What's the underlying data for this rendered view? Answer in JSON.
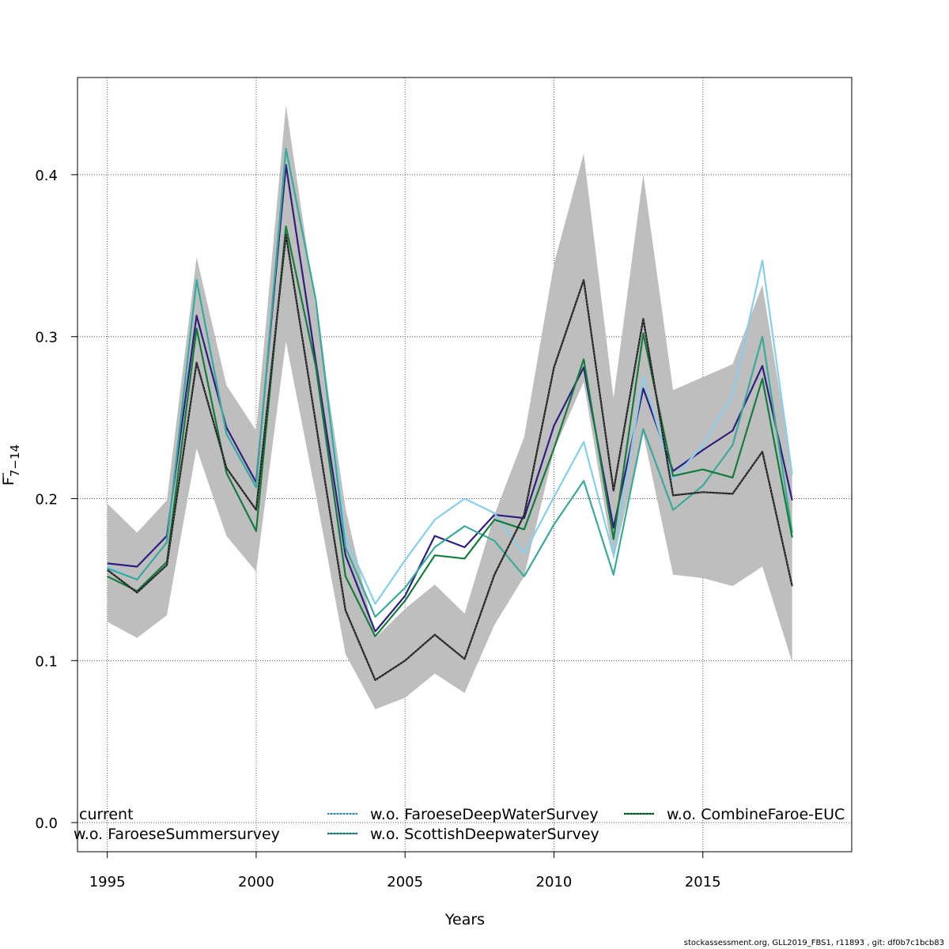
{
  "chart_data": {
    "type": "line",
    "xlabel": "Years",
    "ylabel": {
      "main": "F",
      "subscript": "7−14"
    },
    "xlim": [
      1994,
      2020
    ],
    "ylim": [
      -0.018,
      0.46
    ],
    "x_ticks": [
      1995,
      2000,
      2005,
      2010,
      2015
    ],
    "y_ticks": [
      0.0,
      0.1,
      0.2,
      0.3,
      0.4
    ],
    "y_tick_labels": [
      "0.0",
      "0.1",
      "0.2",
      "0.3",
      "0.4"
    ],
    "grid": true,
    "legend_position": "bottom",
    "x": [
      1995,
      1996,
      1997,
      1998,
      1999,
      2000,
      2001,
      2002,
      2003,
      2004,
      2005,
      2006,
      2007,
      2008,
      2009,
      2010,
      2011,
      2012,
      2013,
      2014,
      2015,
      2016,
      2017,
      2018
    ],
    "confidence_band": {
      "color": "#bebebe",
      "upper": [
        0.197,
        0.179,
        0.199,
        0.349,
        0.27,
        0.242,
        0.443,
        0.318,
        0.194,
        0.114,
        0.132,
        0.147,
        0.129,
        0.19,
        0.238,
        0.345,
        0.413,
        0.262,
        0.4,
        0.267,
        0.275,
        0.283,
        0.332,
        0.218
      ],
      "lower": [
        0.124,
        0.114,
        0.128,
        0.231,
        0.177,
        0.155,
        0.297,
        0.203,
        0.104,
        0.07,
        0.077,
        0.092,
        0.08,
        0.122,
        0.152,
        0.23,
        0.272,
        0.162,
        0.24,
        0.153,
        0.151,
        0.146,
        0.158,
        0.099
      ]
    },
    "series": [
      {
        "name": "current",
        "color": "#1a1a1a",
        "dashed": true,
        "values": [
          0.156,
          0.142,
          0.159,
          0.284,
          0.219,
          0.193,
          0.363,
          0.247,
          0.131,
          0.088,
          0.1,
          0.116,
          0.101,
          0.153,
          0.19,
          0.281,
          0.335,
          0.205,
          0.311,
          0.202,
          0.204,
          0.203,
          0.229,
          0.146
        ]
      },
      {
        "name": "w.o. FaroeseSummersurvey",
        "color": "#2e1e80",
        "dashed": false,
        "values": [
          0.16,
          0.158,
          0.177,
          0.313,
          0.244,
          0.21,
          0.406,
          0.285,
          0.165,
          0.118,
          0.14,
          0.177,
          0.17,
          0.19,
          0.188,
          0.245,
          0.281,
          0.182,
          0.268,
          0.217,
          0.23,
          0.242,
          0.282,
          0.199
        ]
      },
      {
        "name": "w.o. FaroeseDeepWaterSurvey",
        "color": "#87ceeb",
        "dashed": false,
        "values": [
          0.158,
          0.15,
          0.173,
          0.336,
          0.24,
          0.207,
          0.416,
          0.323,
          0.176,
          0.135,
          0.162,
          0.187,
          0.2,
          0.191,
          0.166,
          0.201,
          0.235,
          0.165,
          0.275,
          0.212,
          0.233,
          0.264,
          0.347,
          0.215
        ]
      },
      {
        "name": "w.o. ScottishDeepwaterSurvey",
        "color": "#3aa99a",
        "dashed": false,
        "values": [
          0.157,
          0.15,
          0.173,
          0.335,
          0.24,
          0.207,
          0.416,
          0.323,
          0.17,
          0.127,
          0.145,
          0.17,
          0.183,
          0.174,
          0.152,
          0.184,
          0.211,
          0.153,
          0.243,
          0.193,
          0.208,
          0.233,
          0.3,
          0.179
        ]
      },
      {
        "name": "w.o. CombineFaroe-EUC",
        "color": "#137c3b",
        "dashed": false,
        "values": [
          0.152,
          0.143,
          0.161,
          0.305,
          0.216,
          0.18,
          0.368,
          0.282,
          0.152,
          0.115,
          0.137,
          0.165,
          0.163,
          0.187,
          0.181,
          0.231,
          0.286,
          0.175,
          0.302,
          0.214,
          0.218,
          0.213,
          0.274,
          0.176
        ]
      }
    ],
    "legend": [
      {
        "label": "current",
        "series": 0,
        "key": false
      },
      {
        "label": "w.o. FaroeseSummersurvey",
        "series": 1,
        "key": false
      },
      {
        "label": "w.o. FaroeseDeepWaterSurvey",
        "series": 2,
        "key": true
      },
      {
        "label": "w.o. ScottishDeepwaterSurvey",
        "series": 3,
        "key": true
      },
      {
        "label": "w.o. CombineFaroe-EUC",
        "series": 4,
        "key": true
      }
    ]
  },
  "footnote": "stockassessment.org, GLL2019_FBS1, r11893 , git: df0b7c1bcb83"
}
